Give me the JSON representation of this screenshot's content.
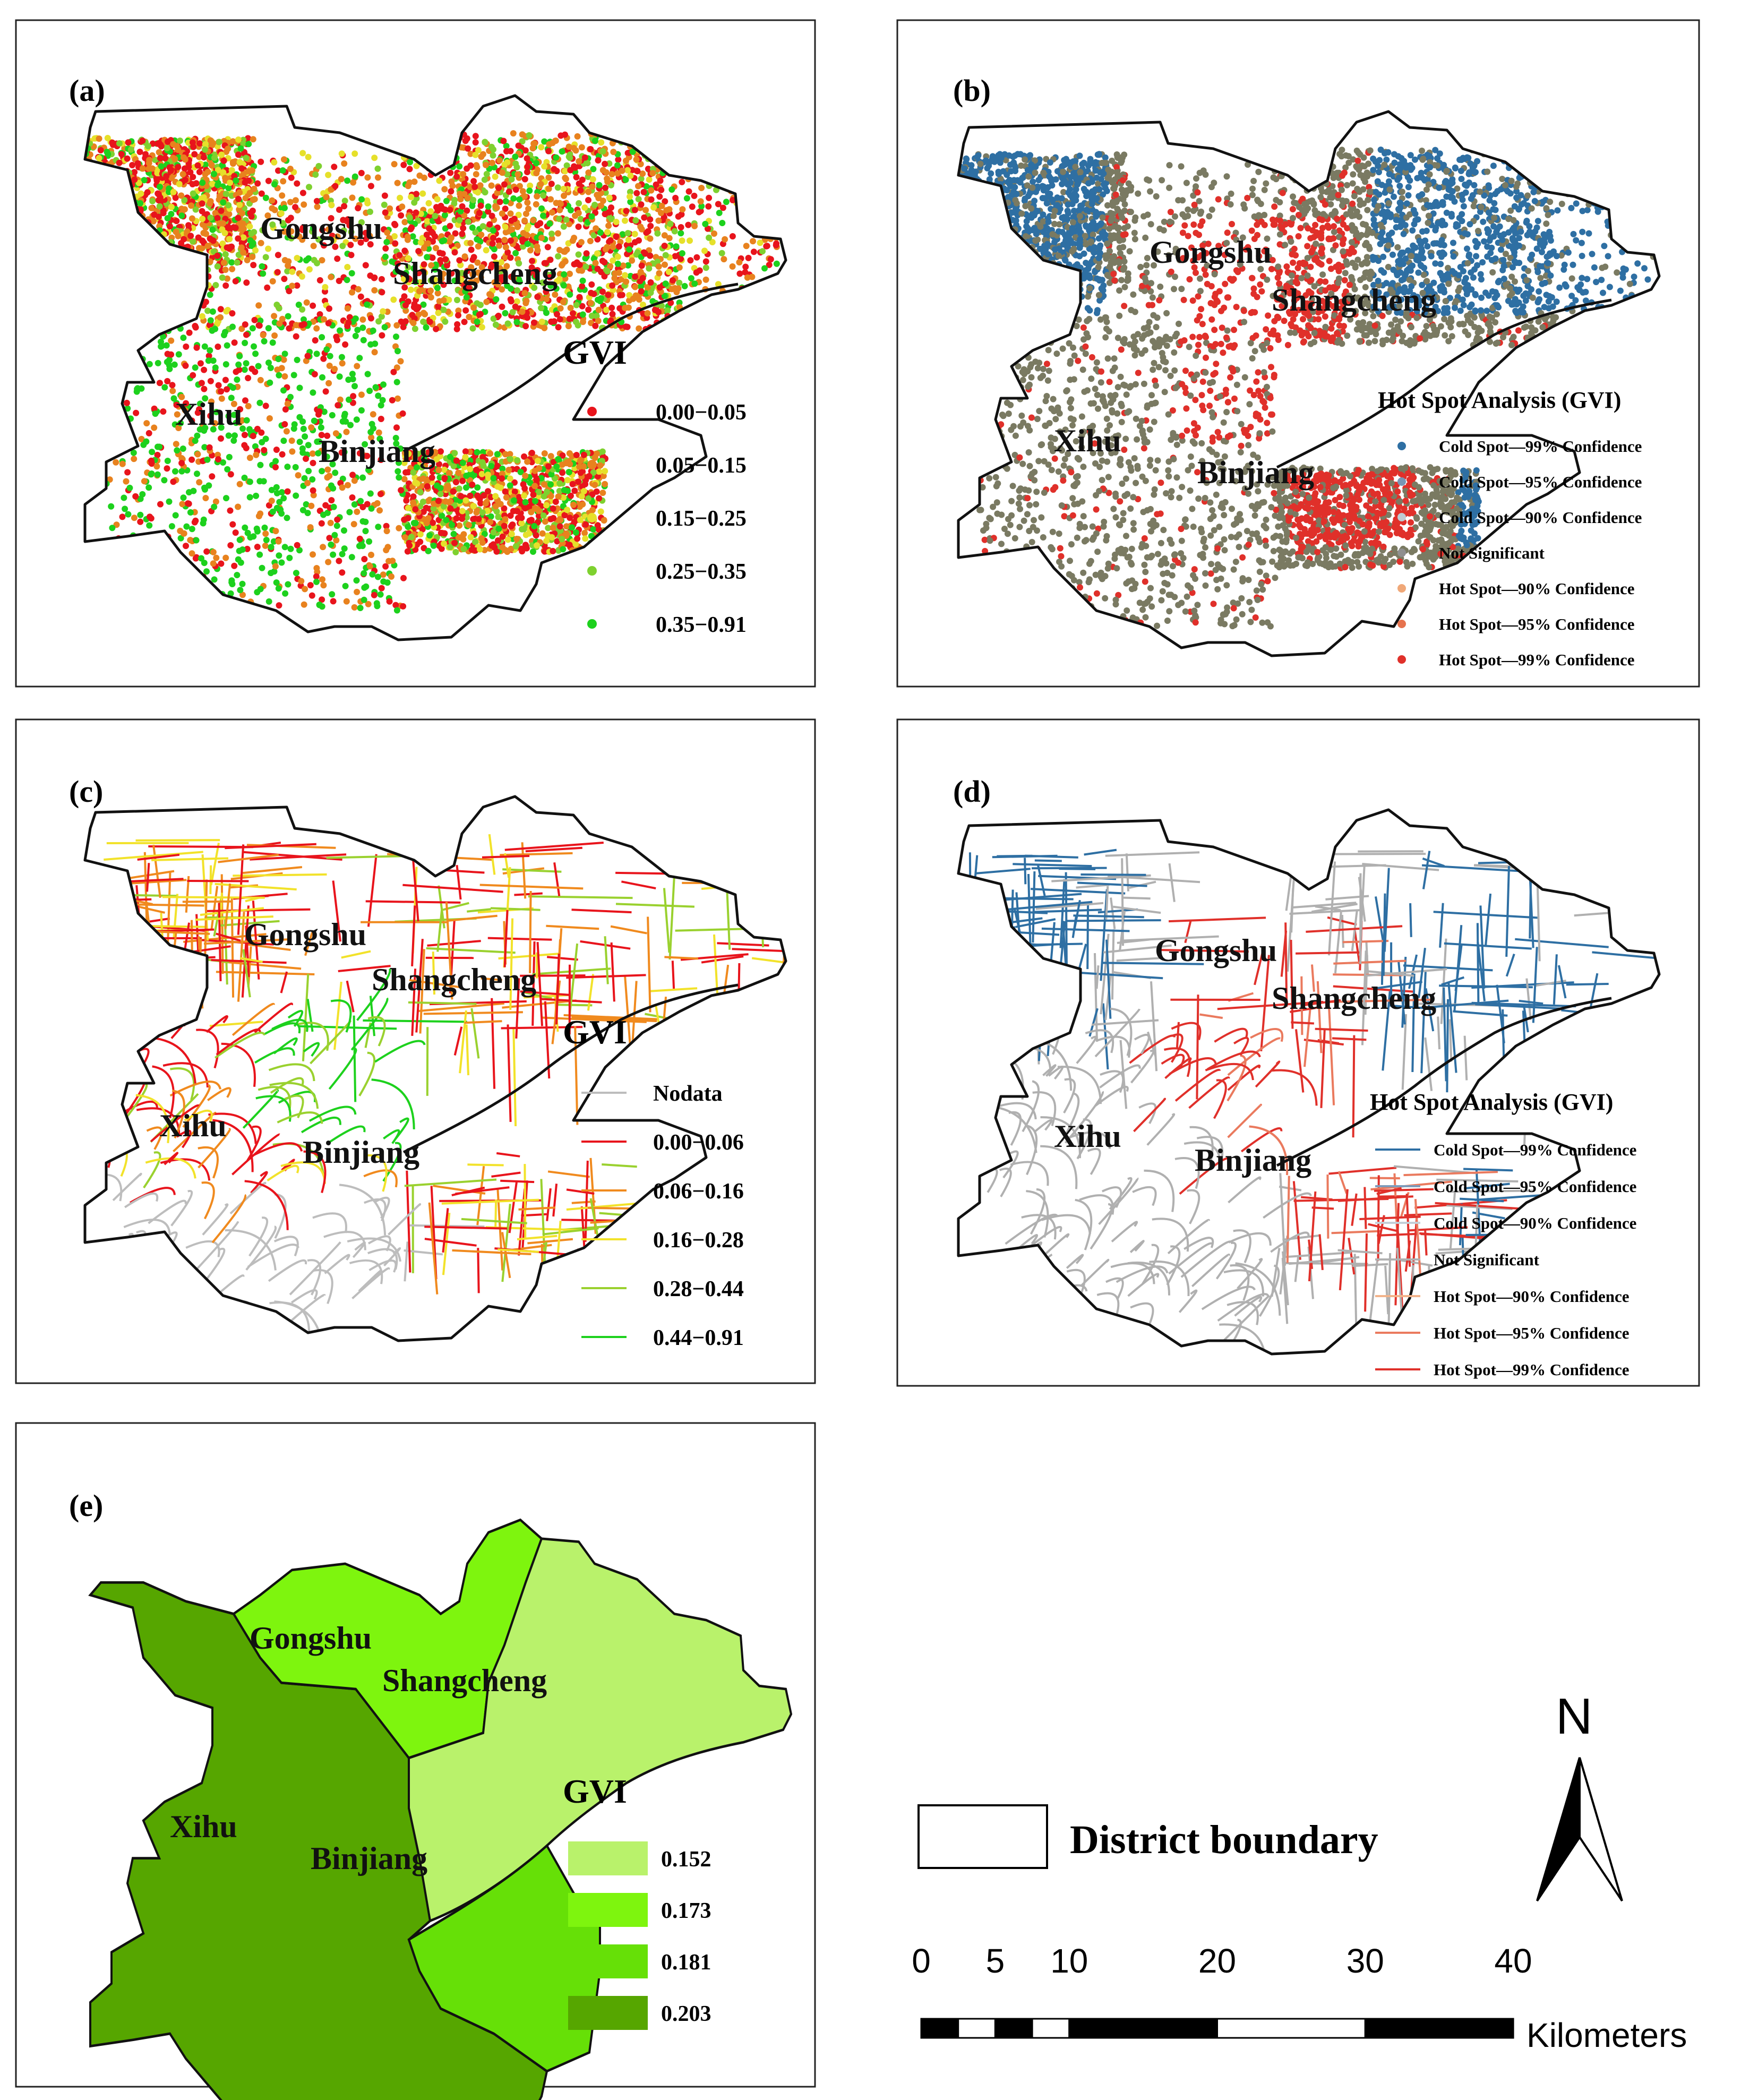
{
  "districts": {
    "gongshu": "Gongshu",
    "shangcheng": "Shangcheng",
    "xihu": "Xihu",
    "binjiang": "Binjiang"
  },
  "panels": {
    "a": {
      "letter": "(a)",
      "legend_title": "GVI",
      "legend": [
        {
          "label": "0.00−0.05",
          "color": "#e8141c"
        },
        {
          "label": "0.05−0.15",
          "color": "#e8821e"
        },
        {
          "label": "0.15−0.25",
          "color": "#e6e02a"
        },
        {
          "label": "0.25−0.35",
          "color": "#7ed12f"
        },
        {
          "label": "0.35−0.91",
          "color": "#1dd11d"
        }
      ]
    },
    "b": {
      "letter": "(b)",
      "legend_title": "Hot Spot Analysis (GVI)",
      "legend": [
        {
          "label": "Cold Spot—99% Confidence",
          "color": "#2e6fa3"
        },
        {
          "label": "Cold Spot—95% Confidence",
          "color": "#7897b5"
        },
        {
          "label": "Cold Spot—90% Confidence",
          "color": "#bfcbd2"
        },
        {
          "label": "Not Significant",
          "color": "#8f8f8f"
        },
        {
          "label": "Hot Spot—90% Confidence",
          "color": "#f0a878"
        },
        {
          "label": "Hot Spot—95% Confidence",
          "color": "#e6734e"
        },
        {
          "label": "Hot Spot—99% Confidence",
          "color": "#e0302a"
        }
      ]
    },
    "c": {
      "letter": "(c)",
      "legend_title": "GVI",
      "legend": [
        {
          "label": "Nodata",
          "color": "#bdbdbd"
        },
        {
          "label": "0.00−0.06",
          "color": "#e8141c"
        },
        {
          "label": "0.06−0.16",
          "color": "#f08a1e"
        },
        {
          "label": "0.16−0.28",
          "color": "#f2e22a"
        },
        {
          "label": "0.28−0.44",
          "color": "#9ad12f"
        },
        {
          "label": "0.44−0.91",
          "color": "#1dd11d"
        }
      ]
    },
    "d": {
      "letter": "(d)",
      "legend_title": "Hot Spot Analysis (GVI)",
      "legend": [
        {
          "label": "Cold Spot—99% Confidence",
          "color": "#2e6fa3"
        },
        {
          "label": "Cold Spot—95% Confidence",
          "color": "#7e9cbb"
        },
        {
          "label": "Cold Spot—90% Confidence",
          "color": "#c4cfd8"
        },
        {
          "label": "Not Significant",
          "color": "#b0b0b0"
        },
        {
          "label": "Hot Spot—90% Confidence",
          "color": "#f2b38a"
        },
        {
          "label": "Hot Spot—95% Confidence",
          "color": "#ea7a5e"
        },
        {
          "label": "Hot Spot—99% Confidence",
          "color": "#e0302a"
        }
      ]
    },
    "e": {
      "letter": "(e)",
      "legend_title": "GVI",
      "legend": [
        {
          "label": "0.152",
          "color": "#b9f26b"
        },
        {
          "label": "0.173",
          "color": "#7ef50e"
        },
        {
          "label": "0.181",
          "color": "#66e007"
        },
        {
          "label": "0.203",
          "color": "#56a600"
        }
      ],
      "district_values": {
        "shangcheng": 0.152,
        "gongshu": 0.173,
        "binjiang": 0.181,
        "xihu": 0.203
      }
    }
  },
  "boundary_legend": {
    "label": "District boundary"
  },
  "north_arrow": {
    "label": "N"
  },
  "scale_bar": {
    "ticks": [
      "0",
      "5",
      "10",
      "20",
      "30",
      "40"
    ],
    "unit": "Kilometers"
  }
}
